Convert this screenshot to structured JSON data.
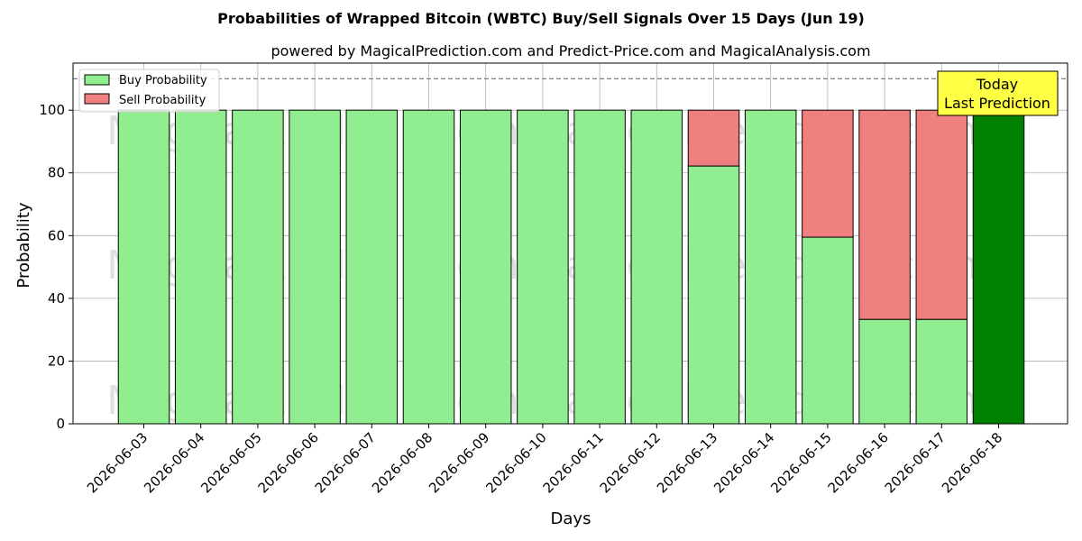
{
  "chart_data": {
    "type": "bar",
    "stacked": true,
    "title": "Probabilities of Wrapped Bitcoin (WBTC) Buy/Sell Signals Over 15 Days (Jun 19)",
    "subtitle": "powered by MagicalPrediction.com and Predict-Price.com and MagicalAnalysis.com",
    "xlabel": "Days",
    "ylabel": "Probability",
    "ylim": [
      0,
      115
    ],
    "yticks": [
      0,
      20,
      40,
      60,
      80,
      100
    ],
    "grid": true,
    "legend_position": "top-left",
    "reference_line": 110,
    "categories": [
      "2026-06-03",
      "2026-06-04",
      "2026-06-05",
      "2026-06-06",
      "2026-06-07",
      "2026-06-08",
      "2026-06-09",
      "2026-06-10",
      "2026-06-11",
      "2026-06-12",
      "2026-06-13",
      "2026-06-14",
      "2026-06-15",
      "2026-06-16",
      "2026-06-17",
      "2026-06-18"
    ],
    "series": [
      {
        "name": "Buy Probability",
        "color": "#90ee90",
        "values": [
          100,
          100,
          100,
          100,
          100,
          100,
          100,
          100,
          100,
          100,
          82.2,
          100,
          59.5,
          33.3,
          33.3,
          100
        ]
      },
      {
        "name": "Sell Probability",
        "color": "#f08080",
        "values": [
          0,
          0,
          0,
          0,
          0,
          0,
          0,
          0,
          0,
          0,
          17.8,
          0,
          40.5,
          66.7,
          66.7,
          0
        ]
      }
    ],
    "highlight": {
      "index": 15,
      "color": "#008000"
    },
    "annotation": {
      "line1": "Today",
      "line2": "Last Prediction",
      "bg": "#ffff44"
    },
    "watermarks": [
      "MagicalAnalysis.com",
      "MagicalPrediction.com"
    ]
  }
}
